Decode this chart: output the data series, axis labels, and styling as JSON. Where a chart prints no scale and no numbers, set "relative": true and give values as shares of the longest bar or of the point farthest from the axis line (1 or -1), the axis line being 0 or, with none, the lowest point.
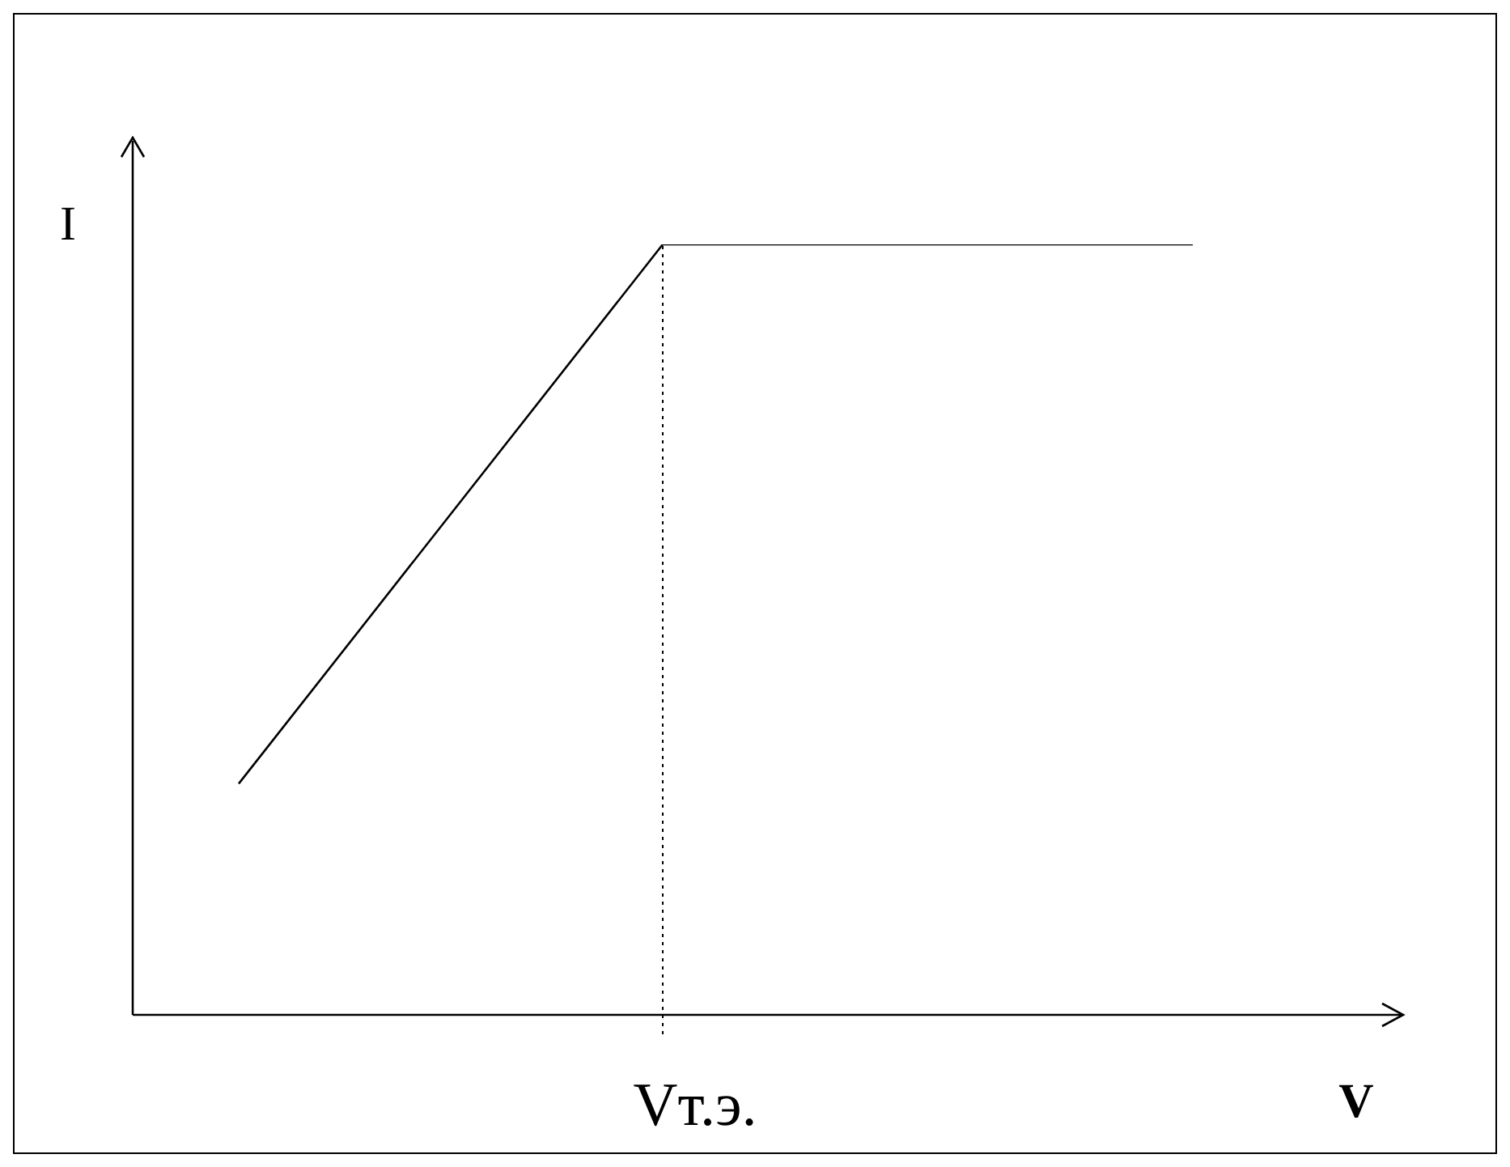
{
  "chart_data": {
    "type": "line",
    "relative": true,
    "xlabel": "V",
    "ylabel": "I",
    "categories": [
      null,
      null,
      null,
      null,
      null,
      null,
      null,
      null,
      null,
      null,
      null,
      null,
      null
    ],
    "series": [
      {
        "color": "#000000",
        "values": [
          null,
          0.3,
          null,
          null,
          null,
          1,
          null,
          null,
          null,
          null,
          1,
          null,
          null
        ]
      }
    ],
    "legend": false,
    "marker": "none",
    "line_style": "solid",
    "annotations": [
      "Vт.э."
    ]
  }
}
